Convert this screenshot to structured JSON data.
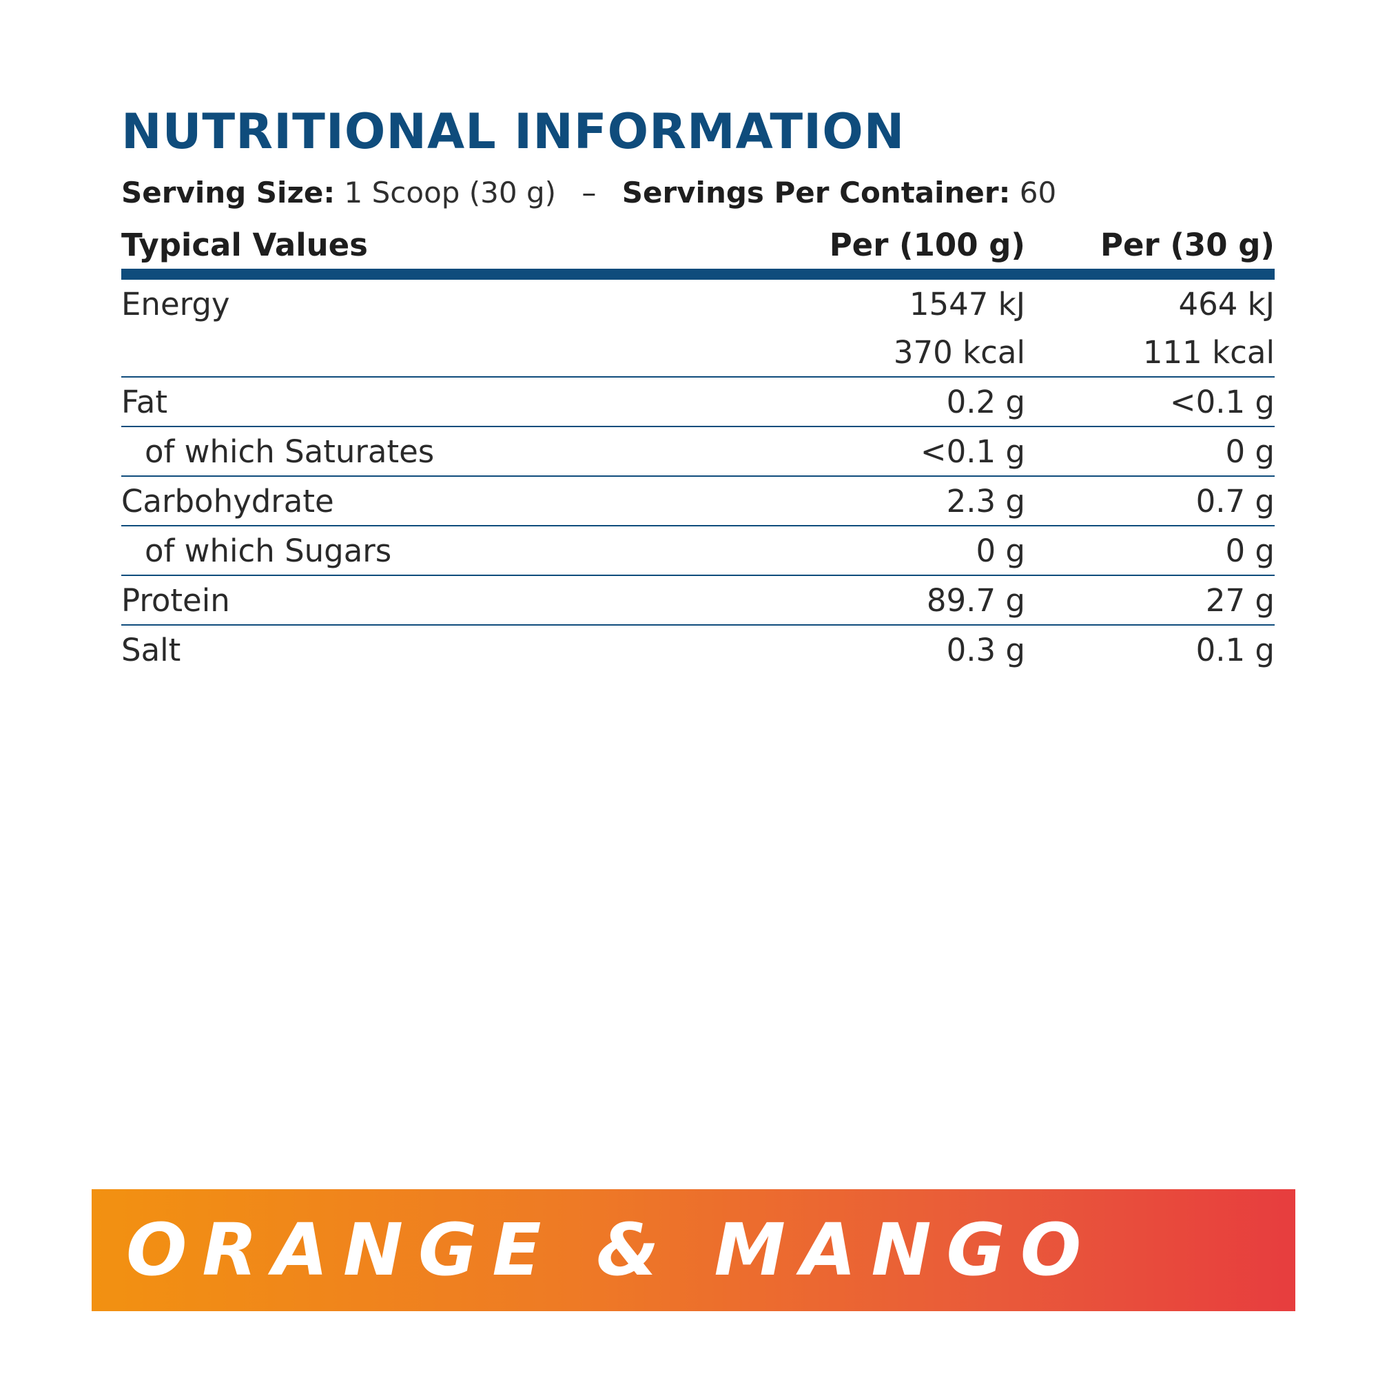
{
  "title": "NUTRITIONAL INFORMATION",
  "serving": {
    "size_label": "Serving Size:",
    "size_value": "1 Scoop (30 g)",
    "separator": "–",
    "per_container_label": "Servings Per Container:",
    "per_container_value": "60"
  },
  "table": {
    "headers": [
      "Typical Values",
      "Per (100 g)",
      "Per (30 g)"
    ],
    "rows": [
      {
        "name": "Energy",
        "per100": "1547 kJ",
        "per30": "464 kJ"
      },
      {
        "name": "",
        "per100": "370 kcal",
        "per30": "111 kcal"
      },
      {
        "name": "Fat",
        "per100": "0.2 g",
        "per30": "<0.1 g"
      },
      {
        "name": "of which Saturates",
        "per100": "<0.1 g",
        "per30": "0 g"
      },
      {
        "name": "Carbohydrate",
        "per100": "2.3 g",
        "per30": "0.7 g"
      },
      {
        "name": "of which Sugars",
        "per100": "0 g",
        "per30": "0 g"
      },
      {
        "name": "Protein",
        "per100": "89.7 g",
        "per30": "27 g"
      },
      {
        "name": "Salt",
        "per100": "0.3 g",
        "per30": "0.1 g"
      }
    ]
  },
  "flavor": {
    "label": "ORANGE & MANGO"
  },
  "colors": {
    "title_blue": "#0f4c7c",
    "gradient_start": "#f29111",
    "gradient_end": "#e73d3e"
  }
}
